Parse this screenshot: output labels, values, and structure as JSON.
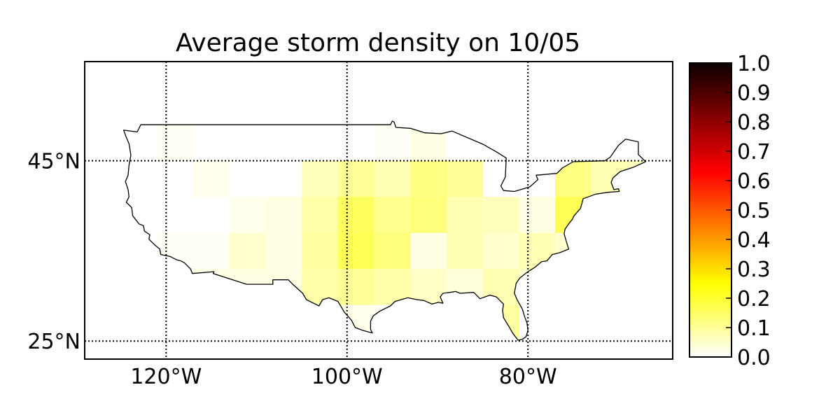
{
  "title": "Average storm density on 10/05",
  "map": {
    "projection": "cylindrical",
    "lon_range": [
      -129,
      -64
    ],
    "lat_range": [
      23,
      56
    ],
    "parallels": [
      {
        "value": 45,
        "label": "45°N"
      },
      {
        "value": 25,
        "label": "25°N"
      }
    ],
    "meridians": [
      {
        "value": -120,
        "label": "120°W"
      },
      {
        "value": -100,
        "label": "100°W"
      },
      {
        "value": -80,
        "label": "80°W"
      }
    ],
    "grid_style": "dotted",
    "region": "Contiguous United States",
    "cells": [
      {
        "lon": -123,
        "lat": 47,
        "v": 0.0
      },
      {
        "lon": -119,
        "lat": 47,
        "v": 0.01
      },
      {
        "lon": -115,
        "lat": 47,
        "v": 0.0
      },
      {
        "lon": -111,
        "lat": 47,
        "v": 0.0
      },
      {
        "lon": -107,
        "lat": 47,
        "v": 0.0
      },
      {
        "lon": -103,
        "lat": 47,
        "v": 0.0
      },
      {
        "lon": -99,
        "lat": 47,
        "v": 0.0
      },
      {
        "lon": -95,
        "lat": 47,
        "v": 0.01
      },
      {
        "lon": -91,
        "lat": 47,
        "v": 0.03
      },
      {
        "lon": -87,
        "lat": 47,
        "v": 0.0
      },
      {
        "lon": -123,
        "lat": 43,
        "v": 0.0
      },
      {
        "lon": -119,
        "lat": 43,
        "v": 0.0
      },
      {
        "lon": -115,
        "lat": 43,
        "v": 0.02
      },
      {
        "lon": -111,
        "lat": 43,
        "v": 0.0
      },
      {
        "lon": -107,
        "lat": 43,
        "v": 0.0
      },
      {
        "lon": -103,
        "lat": 43,
        "v": 0.07
      },
      {
        "lon": -99,
        "lat": 43,
        "v": 0.11
      },
      {
        "lon": -95,
        "lat": 43,
        "v": 0.08
      },
      {
        "lon": -91,
        "lat": 43,
        "v": 0.13
      },
      {
        "lon": -87,
        "lat": 43,
        "v": 0.11
      },
      {
        "lon": -75,
        "lat": 43,
        "v": 0.13
      },
      {
        "lon": -71,
        "lat": 43,
        "v": 0.08
      },
      {
        "lon": -67,
        "lat": 43,
        "v": 0.07
      },
      {
        "lon": -123,
        "lat": 39,
        "v": 0.0
      },
      {
        "lon": -119,
        "lat": 39,
        "v": 0.0
      },
      {
        "lon": -115,
        "lat": 39,
        "v": 0.0
      },
      {
        "lon": -111,
        "lat": 39,
        "v": 0.02
      },
      {
        "lon": -107,
        "lat": 39,
        "v": 0.03
      },
      {
        "lon": -103,
        "lat": 39,
        "v": 0.09
      },
      {
        "lon": -99,
        "lat": 39,
        "v": 0.17
      },
      {
        "lon": -95,
        "lat": 39,
        "v": 0.12
      },
      {
        "lon": -91,
        "lat": 39,
        "v": 0.14
      },
      {
        "lon": -87,
        "lat": 39,
        "v": 0.08
      },
      {
        "lon": -83,
        "lat": 39,
        "v": 0.07
      },
      {
        "lon": -79,
        "lat": 39,
        "v": 0.03
      },
      {
        "lon": -75,
        "lat": 39,
        "v": 0.18
      },
      {
        "lon": -71,
        "lat": 39,
        "v": 0.08
      },
      {
        "lon": -123,
        "lat": 35,
        "v": 0.0
      },
      {
        "lon": -119,
        "lat": 35,
        "v": 0.01
      },
      {
        "lon": -115,
        "lat": 35,
        "v": 0.01
      },
      {
        "lon": -111,
        "lat": 35,
        "v": 0.05
      },
      {
        "lon": -107,
        "lat": 35,
        "v": 0.03
      },
      {
        "lon": -103,
        "lat": 35,
        "v": 0.1
      },
      {
        "lon": -99,
        "lat": 35,
        "v": 0.18
      },
      {
        "lon": -95,
        "lat": 35,
        "v": 0.14
      },
      {
        "lon": -91,
        "lat": 35,
        "v": 0.03
      },
      {
        "lon": -87,
        "lat": 35,
        "v": 0.08
      },
      {
        "lon": -83,
        "lat": 35,
        "v": 0.05
      },
      {
        "lon": -79,
        "lat": 35,
        "v": 0.08
      },
      {
        "lon": -75,
        "lat": 35,
        "v": 0.05
      },
      {
        "lon": -119,
        "lat": 31,
        "v": 0.0
      },
      {
        "lon": -115,
        "lat": 31,
        "v": 0.03
      },
      {
        "lon": -111,
        "lat": 31,
        "v": 0.03
      },
      {
        "lon": -107,
        "lat": 31,
        "v": 0.03
      },
      {
        "lon": -103,
        "lat": 31,
        "v": 0.09
      },
      {
        "lon": -99,
        "lat": 31,
        "v": 0.11
      },
      {
        "lon": -95,
        "lat": 31,
        "v": 0.09
      },
      {
        "lon": -91,
        "lat": 31,
        "v": 0.06
      },
      {
        "lon": -87,
        "lat": 31,
        "v": 0.04
      },
      {
        "lon": -83,
        "lat": 31,
        "v": 0.08
      },
      {
        "lon": -79,
        "lat": 31,
        "v": 0.05
      },
      {
        "lon": -99,
        "lat": 27,
        "v": 0.02
      },
      {
        "lon": -95,
        "lat": 27,
        "v": 0.01
      },
      {
        "lon": -83,
        "lat": 27,
        "v": 0.1
      }
    ],
    "cell_size_deg": 4
  },
  "colorbar": {
    "colormap": "hot_r",
    "min": 0.0,
    "max": 1.0,
    "ticks": [
      "0.0",
      "0.1",
      "0.2",
      "0.3",
      "0.4",
      "0.5",
      "0.6",
      "0.7",
      "0.8",
      "0.9",
      "1.0"
    ]
  }
}
